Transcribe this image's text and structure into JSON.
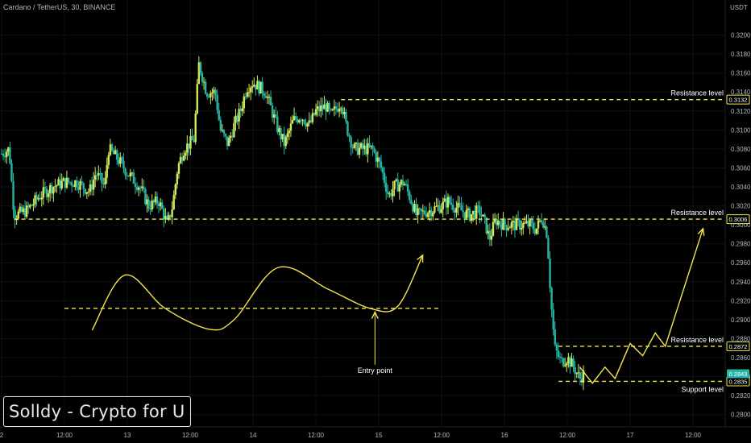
{
  "header": {
    "symbol_title": "Cardano / TetherUS, 30, BINANCE"
  },
  "price_axis": {
    "unit": "USDT"
  },
  "brand": {
    "label": "Solldy - Crypto for U"
  },
  "colors": {
    "background": "#000000",
    "candle_up": "#d2e85a",
    "candle_down": "#26b5a5",
    "annotation": "#f5e74a",
    "axis_text": "#b2b5be",
    "current_price": "#26b5a5"
  },
  "chart_data": {
    "type": "candlestick",
    "title": "Cardano / TetherUS, 30, BINANCE",
    "ylabel": "USDT",
    "ylim": [
      0.2787,
      0.3237
    ],
    "ytick_labels": [
      "0.3200",
      "0.3180",
      "0.3160",
      "0.3140",
      "0.3120",
      "0.3100",
      "0.3080",
      "0.3060",
      "0.3040",
      "0.3020",
      "0.3000",
      "0.2980",
      "0.2960",
      "0.2940",
      "0.2920",
      "0.2900",
      "0.2880",
      "0.2860",
      "0.2840",
      "0.2820",
      "0.2800"
    ],
    "xlim": [
      0,
      5.8
    ],
    "xticks": [
      {
        "x": 0.0,
        "label": "2"
      },
      {
        "x": 0.5,
        "label": "12:00"
      },
      {
        "x": 1.0,
        "label": "13"
      },
      {
        "x": 1.5,
        "label": "12:00"
      },
      {
        "x": 2.0,
        "label": "14"
      },
      {
        "x": 2.5,
        "label": "12:00"
      },
      {
        "x": 3.0,
        "label": "15"
      },
      {
        "x": 3.5,
        "label": "12:00"
      },
      {
        "x": 4.0,
        "label": "16"
      },
      {
        "x": 4.5,
        "label": "12:00"
      },
      {
        "x": 5.0,
        "label": "17"
      },
      {
        "x": 5.5,
        "label": "12:00"
      }
    ],
    "price_path": [
      [
        0.0,
        0.3075
      ],
      [
        0.06,
        0.308
      ],
      [
        0.1,
        0.301
      ],
      [
        0.2,
        0.3015
      ],
      [
        0.3,
        0.303
      ],
      [
        0.4,
        0.304
      ],
      [
        0.5,
        0.3045
      ],
      [
        0.6,
        0.3045
      ],
      [
        0.7,
        0.3035
      ],
      [
        0.75,
        0.3055
      ],
      [
        0.82,
        0.304
      ],
      [
        0.85,
        0.308
      ],
      [
        0.92,
        0.307
      ],
      [
        1.0,
        0.3055
      ],
      [
        1.1,
        0.304
      ],
      [
        1.17,
        0.302
      ],
      [
        1.25,
        0.3025
      ],
      [
        1.32,
        0.3
      ],
      [
        1.36,
        0.302
      ],
      [
        1.4,
        0.306
      ],
      [
        1.45,
        0.308
      ],
      [
        1.53,
        0.309
      ],
      [
        1.57,
        0.317
      ],
      [
        1.63,
        0.314
      ],
      [
        1.7,
        0.314
      ],
      [
        1.74,
        0.31
      ],
      [
        1.8,
        0.3085
      ],
      [
        1.85,
        0.3105
      ],
      [
        1.9,
        0.312
      ],
      [
        1.95,
        0.3145
      ],
      [
        2.0,
        0.315
      ],
      [
        2.05,
        0.3145
      ],
      [
        2.1,
        0.314
      ],
      [
        2.15,
        0.312
      ],
      [
        2.2,
        0.31
      ],
      [
        2.25,
        0.3085
      ],
      [
        2.32,
        0.311
      ],
      [
        2.38,
        0.3115
      ],
      [
        2.45,
        0.3105
      ],
      [
        2.5,
        0.312
      ],
      [
        2.58,
        0.3125
      ],
      [
        2.62,
        0.3115
      ],
      [
        2.7,
        0.313
      ],
      [
        2.74,
        0.3105
      ],
      [
        2.8,
        0.308
      ],
      [
        2.88,
        0.308
      ],
      [
        2.95,
        0.308
      ],
      [
        3.02,
        0.306
      ],
      [
        3.08,
        0.303
      ],
      [
        3.12,
        0.304
      ],
      [
        3.2,
        0.3045
      ],
      [
        3.26,
        0.3025
      ],
      [
        3.3,
        0.301
      ],
      [
        3.4,
        0.3015
      ],
      [
        3.5,
        0.302
      ],
      [
        3.55,
        0.3025
      ],
      [
        3.62,
        0.3018
      ],
      [
        3.72,
        0.301
      ],
      [
        3.8,
        0.3015
      ],
      [
        3.85,
        0.3
      ],
      [
        3.88,
        0.2985
      ],
      [
        3.93,
        0.3005
      ],
      [
        4.0,
        0.3
      ],
      [
        4.1,
        0.3
      ],
      [
        4.2,
        0.3
      ],
      [
        4.25,
        0.2995
      ],
      [
        4.3,
        0.3008
      ],
      [
        4.34,
        0.299
      ],
      [
        4.37,
        0.292
      ],
      [
        4.4,
        0.287
      ],
      [
        4.45,
        0.2855
      ],
      [
        4.5,
        0.286
      ],
      [
        4.55,
        0.285
      ],
      [
        4.6,
        0.2838
      ],
      [
        4.63,
        0.2843
      ]
    ],
    "current_price": 0.2843,
    "current_price_label": "0.2843",
    "levels": [
      {
        "name": "Resistance level",
        "price": 0.3132,
        "price_label": "0.3132",
        "x_start": 2.7
      },
      {
        "name": "Resistance level",
        "price": 0.3006,
        "price_label": "0.3006",
        "x_start": 0.1
      },
      {
        "name": "Resistance level",
        "price": 0.2872,
        "price_label": "0.2872",
        "x_start": 4.43
      },
      {
        "name": "Support level",
        "price": 0.2835,
        "price_label": "0.2835",
        "x_start": 4.43
      }
    ],
    "annotations": {
      "entry_level": {
        "price": 0.2912,
        "x_start": 0.5,
        "x_end": 3.5
      },
      "entry_point": {
        "label": "Entry point",
        "x": 2.97,
        "price": 0.2908,
        "label_price": 0.2844
      },
      "wave_path": [
        [
          0.72,
          0.2889
        ],
        [
          0.98,
          0.2947
        ],
        [
          1.3,
          0.2912
        ],
        [
          1.65,
          0.289
        ],
        [
          1.85,
          0.29
        ],
        [
          2.2,
          0.2955
        ],
        [
          2.6,
          0.2932
        ],
        [
          2.93,
          0.2912
        ],
        [
          3.15,
          0.2914
        ],
        [
          3.35,
          0.2968
        ]
      ],
      "projection_path": [
        [
          4.6,
          0.285
        ],
        [
          4.7,
          0.2833
        ],
        [
          4.8,
          0.285
        ],
        [
          4.88,
          0.2838
        ],
        [
          5.0,
          0.2875
        ],
        [
          5.1,
          0.2862
        ],
        [
          5.2,
          0.2886
        ],
        [
          5.28,
          0.2872
        ],
        [
          5.58,
          0.2996
        ]
      ]
    }
  }
}
